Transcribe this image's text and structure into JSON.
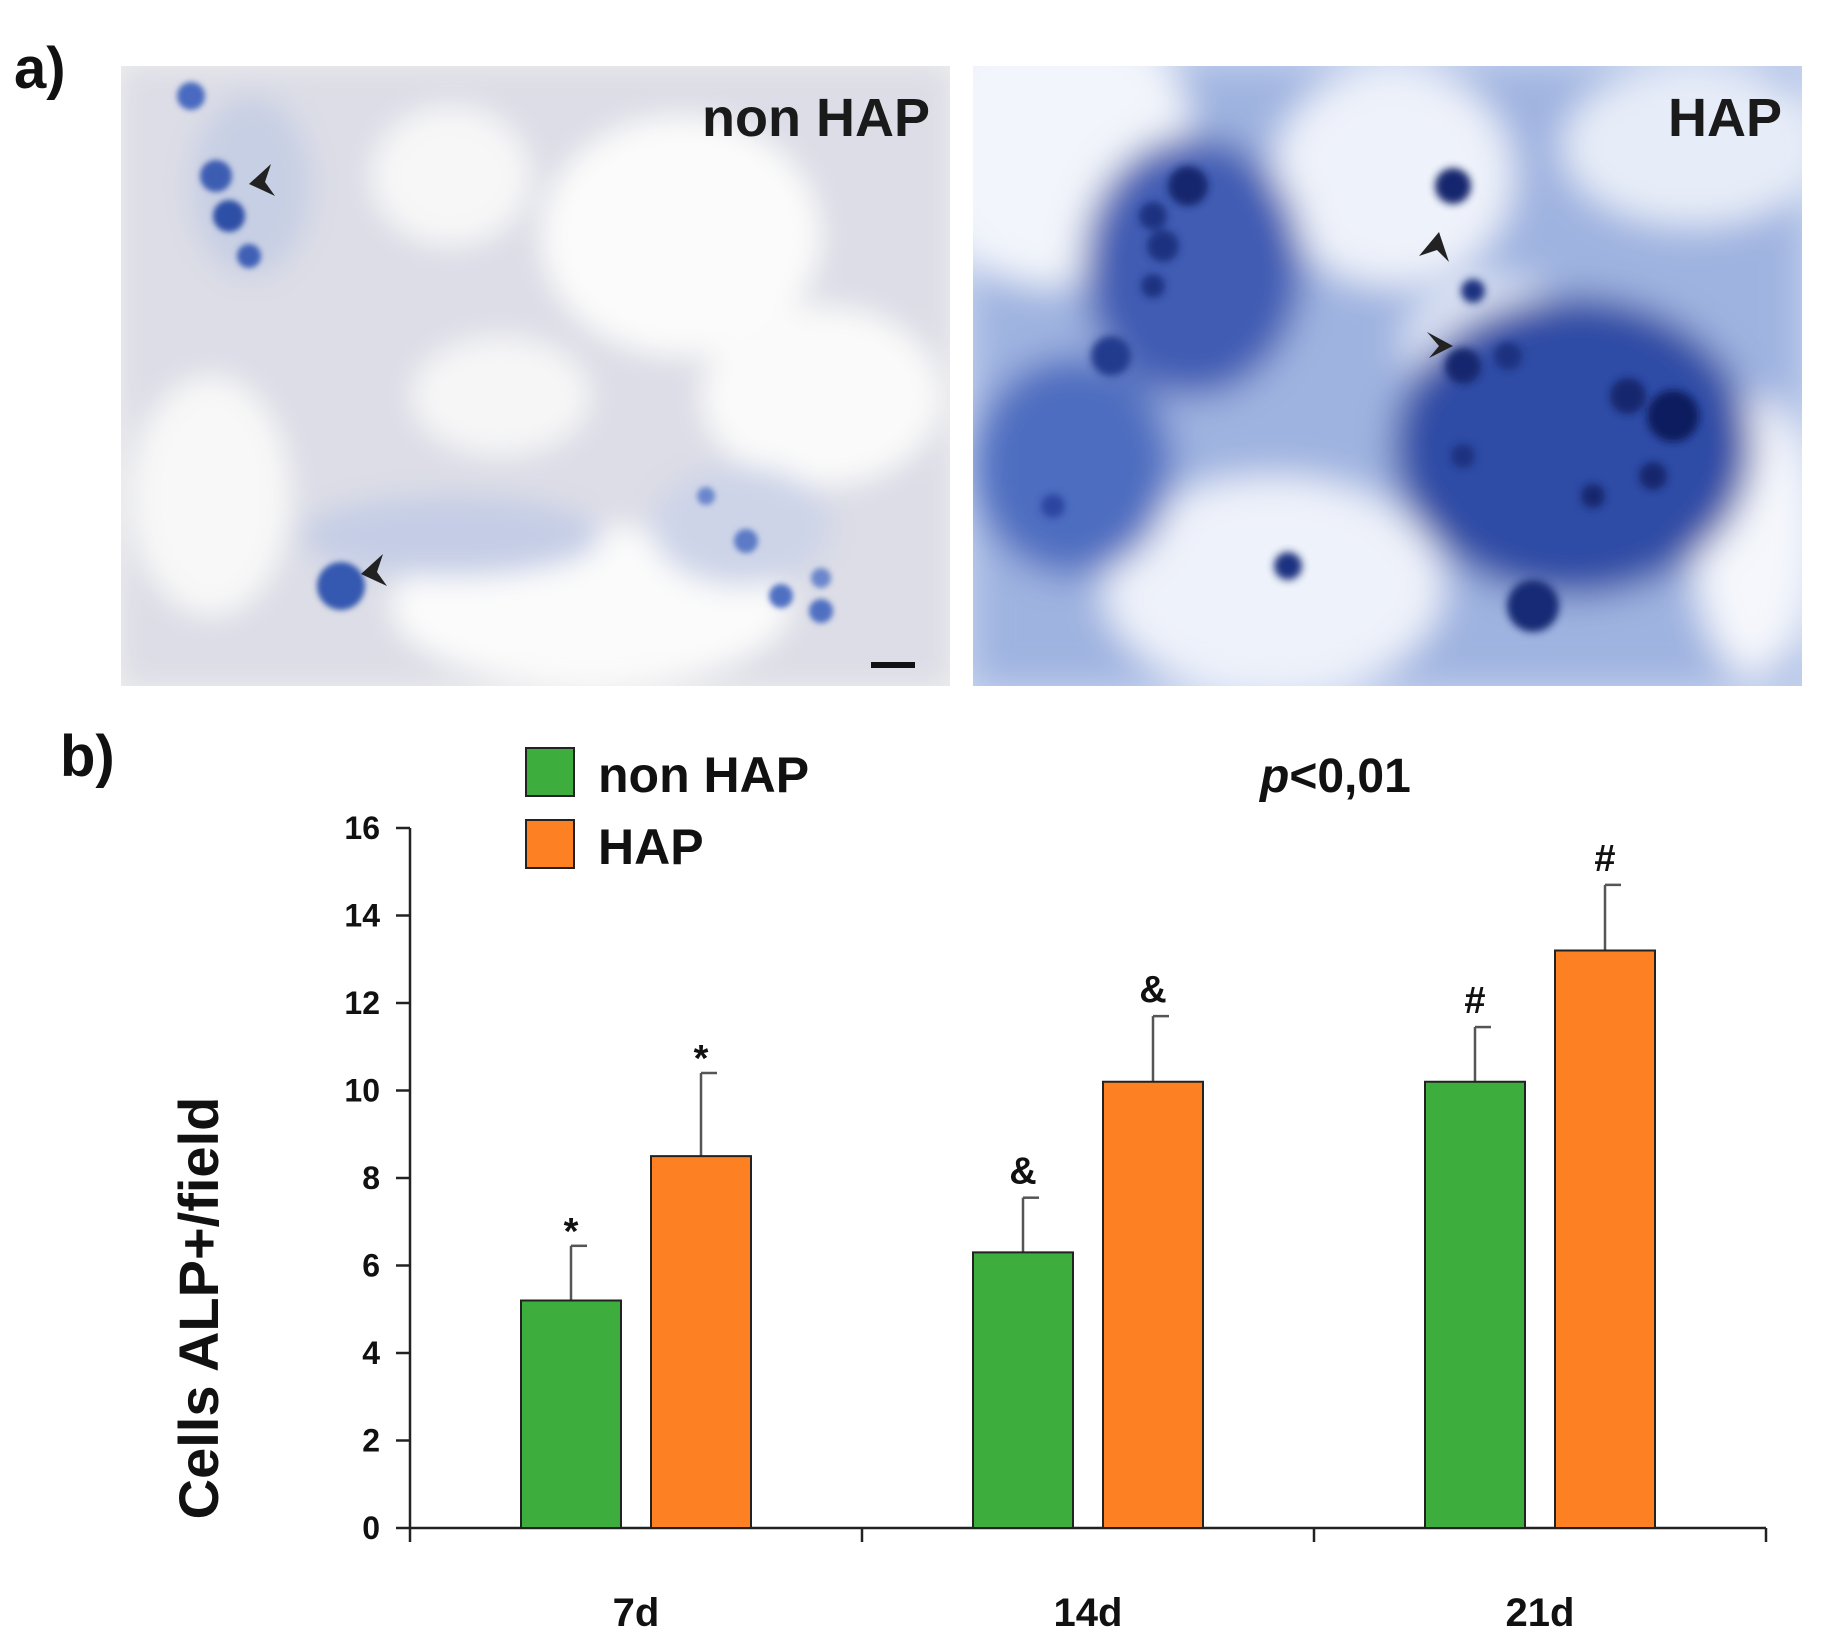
{
  "figure": {
    "panel_a_label": "a)",
    "panel_b_label": "b)",
    "images": [
      {
        "label": "non HAP",
        "background": "#eeeeef",
        "stain": "#3e5fb0"
      },
      {
        "label": "HAP",
        "background": "#c9d6f0",
        "stain": "#1f3a8f"
      }
    ]
  },
  "chart_data": {
    "type": "bar",
    "categories": [
      "7d",
      "14d",
      "21d"
    ],
    "ylabel": "Cells ALP+/field",
    "ylim": [
      0,
      16
    ],
    "yticks": [
      0,
      2,
      4,
      6,
      8,
      10,
      12,
      14,
      16
    ],
    "annotation": {
      "italic": "p",
      "rest": "<0,01"
    },
    "legend_position": "top-left",
    "grid": false,
    "series": [
      {
        "name": "non HAP",
        "color": "#3dae3d",
        "values": [
          5.2,
          6.3,
          10.2
        ],
        "errors": [
          1.25,
          1.25,
          1.25
        ],
        "markers": [
          "*",
          "&",
          "#"
        ]
      },
      {
        "name": "HAP",
        "color": "#fd8022",
        "values": [
          8.5,
          10.2,
          13.2
        ],
        "errors": [
          1.9,
          1.5,
          1.5
        ],
        "markers": [
          "*",
          "&",
          "#"
        ]
      }
    ]
  }
}
